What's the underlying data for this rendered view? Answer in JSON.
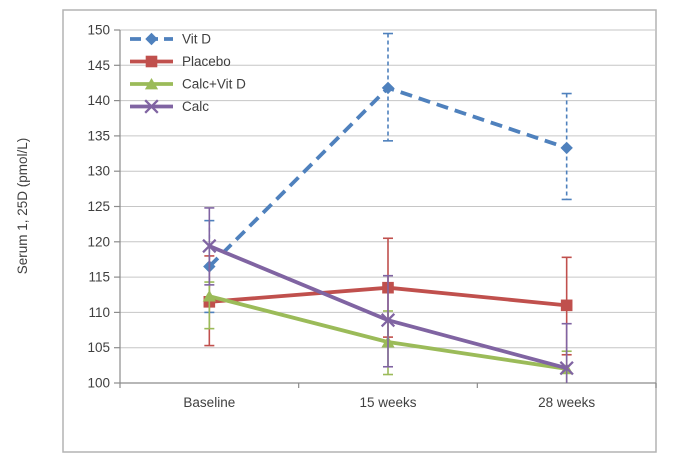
{
  "chart_data": {
    "type": "line",
    "title": "",
    "xlabel": "",
    "ylabel": "Serum 1, 25D (pmol/L)",
    "categories": [
      "Baseline",
      "15 weeks",
      "28 weeks"
    ],
    "ylim": [
      100,
      150
    ],
    "yticks": [
      100,
      105,
      110,
      115,
      120,
      125,
      130,
      135,
      140,
      145,
      150
    ],
    "grid": true,
    "legend_position": "top-left-inside",
    "series": [
      {
        "name": "Vit D",
        "color": "#4F81BD",
        "marker": "diamond",
        "line": "dashed",
        "values": [
          116.5,
          141.8,
          133.3
        ],
        "err_low": [
          110.0,
          134.3,
          126.0
        ],
        "err_high": [
          123.0,
          149.5,
          141.0
        ]
      },
      {
        "name": "Placebo",
        "color": "#C0504D",
        "marker": "square",
        "line": "solid",
        "values": [
          111.5,
          113.5,
          111.0
        ],
        "err_low": [
          105.3,
          106.5,
          104.0
        ],
        "err_high": [
          118.0,
          120.5,
          117.8
        ]
      },
      {
        "name": "Calc+Vit D",
        "color": "#9BBB59",
        "marker": "triangle",
        "line": "solid",
        "values": [
          112.3,
          105.8,
          102.0
        ],
        "err_low": [
          107.7,
          101.2,
          100.0
        ],
        "err_high": [
          114.3,
          110.2,
          104.5
        ]
      },
      {
        "name": "Calc",
        "color": "#8064A2",
        "marker": "x",
        "line": "solid",
        "values": [
          119.4,
          108.9,
          102.1
        ],
        "err_low": [
          113.9,
          102.3,
          100.0
        ],
        "err_high": [
          124.8,
          115.2,
          108.4
        ]
      }
    ],
    "colors": {
      "background": "#ffffff",
      "plot_border": "#b3b3b3",
      "gridline": "#c6c6c6",
      "axis_line": "#8c8c8c",
      "text": "#3f3f3f"
    }
  }
}
